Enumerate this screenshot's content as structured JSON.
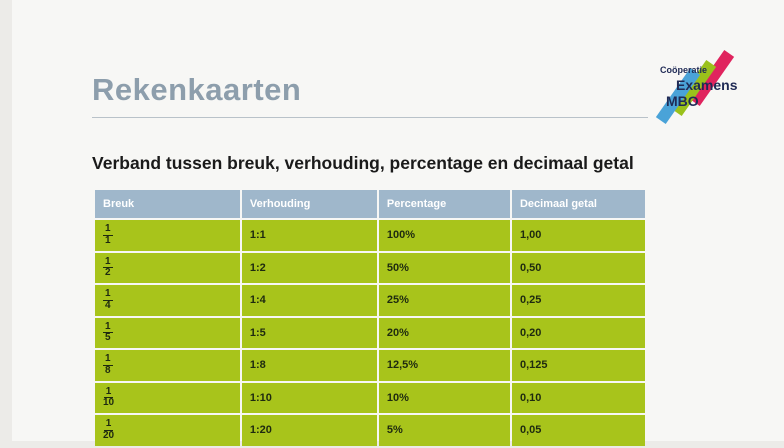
{
  "header": {
    "title": "Rekenkaarten",
    "logo": [
      "Coöperatie",
      "Examens",
      "MBO"
    ]
  },
  "subtitle": "Verband tussen breuk, verhouding, percentage en decimaal getal",
  "table": {
    "columns": [
      "Breuk",
      "Verhouding",
      "Percentage",
      "Decimaal getal"
    ],
    "rows": [
      [
        {
          "numerator": "1",
          "denominator": "1"
        },
        "1:1",
        "100%",
        "1,00"
      ],
      [
        {
          "numerator": "1",
          "denominator": "2"
        },
        "1:2",
        "50%",
        "0,50"
      ],
      [
        {
          "numerator": "1",
          "denominator": "4"
        },
        "1:4",
        "25%",
        "0,25"
      ],
      [
        {
          "numerator": "1",
          "denominator": "5"
        },
        "1:5",
        "20%",
        "0,20"
      ],
      [
        {
          "numerator": "1",
          "denominator": "8"
        },
        "1:8",
        "12,5%",
        "0,125"
      ],
      [
        {
          "numerator": "1",
          "denominator": "10"
        },
        "1:10",
        "10%",
        "0,10"
      ],
      [
        {
          "numerator": "1",
          "denominator": "20"
        },
        "1:20",
        "5%",
        "0,05"
      ]
    ]
  }
}
